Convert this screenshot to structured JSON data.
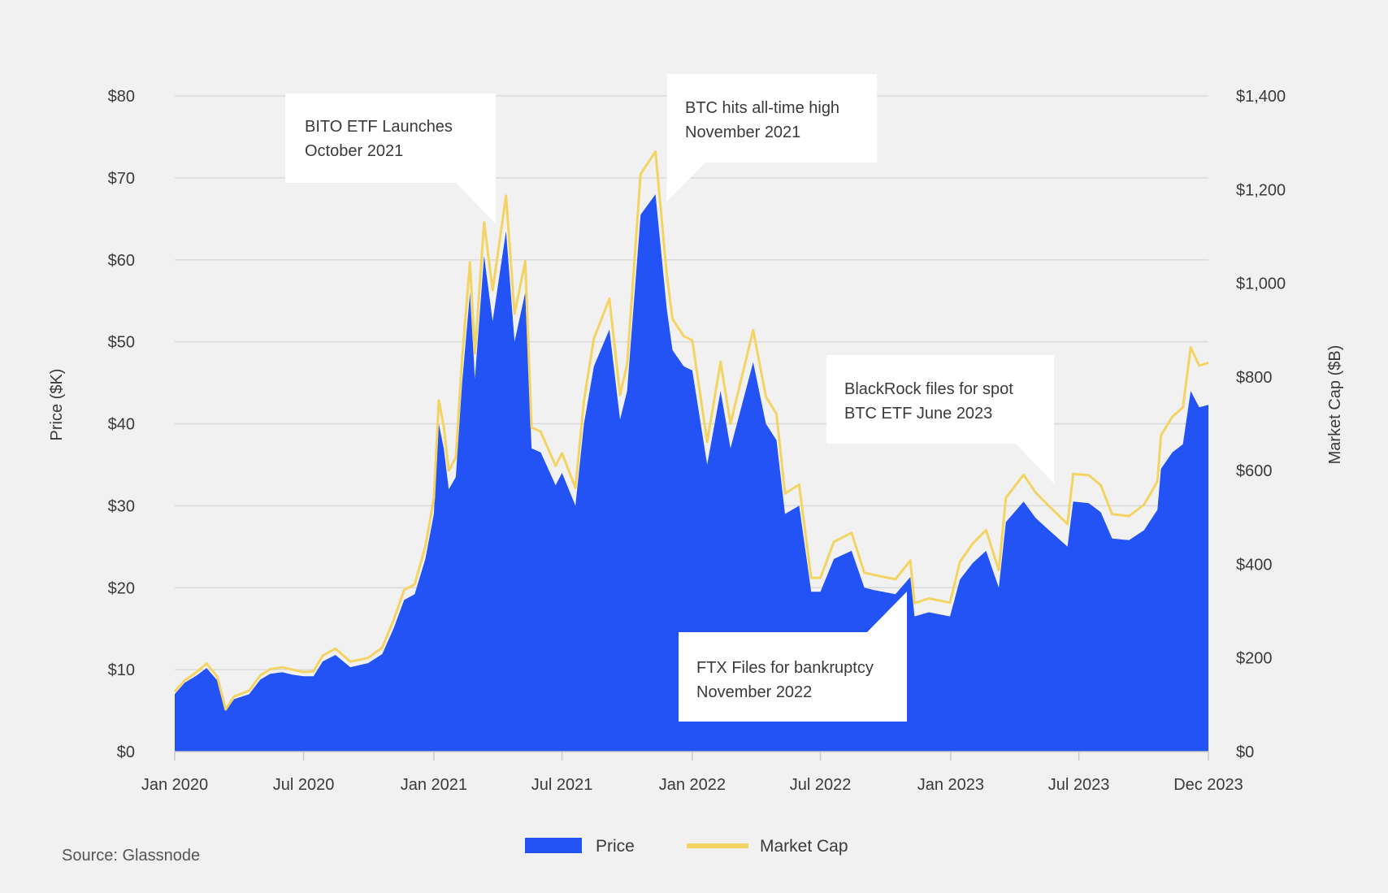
{
  "colors": {
    "background": "#f1f1f1",
    "price_fill": "#2352f5",
    "market_cap_line": "#f3d462",
    "grid": "#d9d9d9",
    "text": "#3a3a3a",
    "annotation_bg": "#ffffff"
  },
  "source": "Source: Glassnode",
  "chart_data": {
    "type": "area",
    "title": "",
    "xlabel": "",
    "ylabel_left": "Price ($K)",
    "ylabel_right": "Market Cap ($B)",
    "ylim_left": [
      0,
      80
    ],
    "ylim_right": [
      0,
      1400
    ],
    "grid": true,
    "legend_position": "bottom-center",
    "x_range": [
      "2020-01-01",
      "2023-12-31"
    ],
    "x_ticks": [
      {
        "date": "2020-01-01",
        "label": "Jan 2020"
      },
      {
        "date": "2020-07-01",
        "label": "Jul 2020"
      },
      {
        "date": "2021-01-01",
        "label": "Jan 2021"
      },
      {
        "date": "2021-07-01",
        "label": "Jul 2021"
      },
      {
        "date": "2022-01-01",
        "label": "Jan 2022"
      },
      {
        "date": "2022-07-01",
        "label": "Jul 2022"
      },
      {
        "date": "2023-01-01",
        "label": "Jan 2023"
      },
      {
        "date": "2023-07-01",
        "label": "Jul 2023"
      },
      {
        "date": "2023-12-31",
        "label": "Dec 2023"
      }
    ],
    "y_ticks_left": [
      {
        "value": 0,
        "label": "$0"
      },
      {
        "value": 10,
        "label": "$10"
      },
      {
        "value": 20,
        "label": "$20"
      },
      {
        "value": 30,
        "label": "$30"
      },
      {
        "value": 40,
        "label": "$40"
      },
      {
        "value": 50,
        "label": "$50"
      },
      {
        "value": 60,
        "label": "$60"
      },
      {
        "value": 70,
        "label": "$70"
      },
      {
        "value": 80,
        "label": "$80"
      }
    ],
    "y_ticks_right": [
      {
        "value": 0,
        "label": "$0"
      },
      {
        "value": 200,
        "label": "$200"
      },
      {
        "value": 400,
        "label": "$400"
      },
      {
        "value": 600,
        "label": "$600"
      },
      {
        "value": 800,
        "label": "$800"
      },
      {
        "value": 1000,
        "label": "$1,000"
      },
      {
        "value": 1200,
        "label": "$1,200"
      },
      {
        "value": 1400,
        "label": "$1,400"
      }
    ],
    "series": [
      {
        "name": "Price",
        "axis": "left",
        "style": "area",
        "points": [
          [
            "2020-01-01",
            7.0
          ],
          [
            "2020-01-15",
            8.4
          ],
          [
            "2020-02-01",
            9.3
          ],
          [
            "2020-02-15",
            10.2
          ],
          [
            "2020-03-01",
            8.7
          ],
          [
            "2020-03-13",
            5.0
          ],
          [
            "2020-03-25",
            6.4
          ],
          [
            "2020-04-15",
            7.0
          ],
          [
            "2020-05-01",
            8.8
          ],
          [
            "2020-05-15",
            9.5
          ],
          [
            "2020-06-01",
            9.7
          ],
          [
            "2020-06-15",
            9.4
          ],
          [
            "2020-07-01",
            9.2
          ],
          [
            "2020-07-15",
            9.2
          ],
          [
            "2020-07-28",
            11.0
          ],
          [
            "2020-08-15",
            11.8
          ],
          [
            "2020-09-05",
            10.3
          ],
          [
            "2020-09-30",
            10.8
          ],
          [
            "2020-10-20",
            11.9
          ],
          [
            "2020-11-05",
            15.0
          ],
          [
            "2020-11-20",
            18.5
          ],
          [
            "2020-12-05",
            19.2
          ],
          [
            "2020-12-20",
            23.5
          ],
          [
            "2021-01-01",
            29.0
          ],
          [
            "2021-01-08",
            40.0
          ],
          [
            "2021-01-15",
            37.0
          ],
          [
            "2021-01-22",
            32.0
          ],
          [
            "2021-02-01",
            33.5
          ],
          [
            "2021-02-10",
            45.0
          ],
          [
            "2021-02-21",
            56.0
          ],
          [
            "2021-02-28",
            45.5
          ],
          [
            "2021-03-13",
            60.5
          ],
          [
            "2021-03-25",
            52.5
          ],
          [
            "2021-04-13",
            63.5
          ],
          [
            "2021-04-25",
            50.0
          ],
          [
            "2021-05-10",
            56.0
          ],
          [
            "2021-05-19",
            37.0
          ],
          [
            "2021-06-01",
            36.5
          ],
          [
            "2021-06-22",
            32.5
          ],
          [
            "2021-07-01",
            34.0
          ],
          [
            "2021-07-20",
            30.0
          ],
          [
            "2021-08-01",
            40.0
          ],
          [
            "2021-08-15",
            47.0
          ],
          [
            "2021-09-06",
            51.5
          ],
          [
            "2021-09-21",
            40.5
          ],
          [
            "2021-10-01",
            44.0
          ],
          [
            "2021-10-20",
            65.5
          ],
          [
            "2021-11-10",
            68.0
          ],
          [
            "2021-11-26",
            54.0
          ],
          [
            "2021-12-04",
            49.0
          ],
          [
            "2021-12-20",
            47.0
          ],
          [
            "2022-01-01",
            46.5
          ],
          [
            "2022-01-22",
            35.0
          ],
          [
            "2022-02-10",
            44.0
          ],
          [
            "2022-02-24",
            37.0
          ],
          [
            "2022-03-28",
            47.5
          ],
          [
            "2022-04-15",
            40.0
          ],
          [
            "2022-04-30",
            38.0
          ],
          [
            "2022-05-12",
            29.0
          ],
          [
            "2022-06-01",
            30.0
          ],
          [
            "2022-06-18",
            19.5
          ],
          [
            "2022-07-01",
            19.5
          ],
          [
            "2022-07-20",
            23.5
          ],
          [
            "2022-08-14",
            24.5
          ],
          [
            "2022-09-01",
            20.0
          ],
          [
            "2022-09-15",
            19.7
          ],
          [
            "2022-10-15",
            19.2
          ],
          [
            "2022-11-05",
            21.3
          ],
          [
            "2022-11-11",
            16.5
          ],
          [
            "2022-12-01",
            17.0
          ],
          [
            "2022-12-31",
            16.5
          ],
          [
            "2023-01-14",
            21.0
          ],
          [
            "2023-02-01",
            23.0
          ],
          [
            "2023-02-20",
            24.5
          ],
          [
            "2023-03-10",
            20.0
          ],
          [
            "2023-03-20",
            28.0
          ],
          [
            "2023-04-14",
            30.5
          ],
          [
            "2023-05-01",
            28.5
          ],
          [
            "2023-05-20",
            27.0
          ],
          [
            "2023-06-15",
            25.0
          ],
          [
            "2023-06-23",
            30.5
          ],
          [
            "2023-07-15",
            30.3
          ],
          [
            "2023-08-01",
            29.2
          ],
          [
            "2023-08-17",
            26.0
          ],
          [
            "2023-09-10",
            25.8
          ],
          [
            "2023-10-01",
            27.0
          ],
          [
            "2023-10-20",
            29.5
          ],
          [
            "2023-10-25",
            34.5
          ],
          [
            "2023-11-10",
            36.5
          ],
          [
            "2023-11-25",
            37.5
          ],
          [
            "2023-12-06",
            44.0
          ],
          [
            "2023-12-18",
            42.0
          ],
          [
            "2023-12-31",
            42.3
          ]
        ]
      },
      {
        "name": "Market Cap",
        "axis": "right",
        "style": "line",
        "points": [
          [
            "2020-01-01",
            128
          ],
          [
            "2020-01-15",
            152
          ],
          [
            "2020-02-01",
            170
          ],
          [
            "2020-02-15",
            188
          ],
          [
            "2020-03-01",
            160
          ],
          [
            "2020-03-13",
            90
          ],
          [
            "2020-03-25",
            118
          ],
          [
            "2020-04-15",
            130
          ],
          [
            "2020-05-01",
            163
          ],
          [
            "2020-05-15",
            176
          ],
          [
            "2020-06-01",
            180
          ],
          [
            "2020-06-15",
            175
          ],
          [
            "2020-07-01",
            170
          ],
          [
            "2020-07-15",
            171
          ],
          [
            "2020-07-28",
            205
          ],
          [
            "2020-08-15",
            220
          ],
          [
            "2020-09-05",
            192
          ],
          [
            "2020-09-30",
            200
          ],
          [
            "2020-10-20",
            222
          ],
          [
            "2020-11-05",
            280
          ],
          [
            "2020-11-20",
            345
          ],
          [
            "2020-12-05",
            357
          ],
          [
            "2020-12-20",
            438
          ],
          [
            "2021-01-01",
            540
          ],
          [
            "2021-01-08",
            750
          ],
          [
            "2021-01-15",
            694
          ],
          [
            "2021-01-22",
            600
          ],
          [
            "2021-02-01",
            628
          ],
          [
            "2021-02-10",
            840
          ],
          [
            "2021-02-21",
            1045
          ],
          [
            "2021-02-28",
            850
          ],
          [
            "2021-03-13",
            1130
          ],
          [
            "2021-03-25",
            985
          ],
          [
            "2021-04-13",
            1187
          ],
          [
            "2021-04-25",
            935
          ],
          [
            "2021-05-10",
            1047
          ],
          [
            "2021-05-19",
            692
          ],
          [
            "2021-06-01",
            683
          ],
          [
            "2021-06-22",
            610
          ],
          [
            "2021-07-01",
            637
          ],
          [
            "2021-07-20",
            563
          ],
          [
            "2021-08-01",
            750
          ],
          [
            "2021-08-15",
            882
          ],
          [
            "2021-09-06",
            967
          ],
          [
            "2021-09-21",
            761
          ],
          [
            "2021-10-01",
            827
          ],
          [
            "2021-10-20",
            1233
          ],
          [
            "2021-11-10",
            1281
          ],
          [
            "2021-11-26",
            1018
          ],
          [
            "2021-12-04",
            924
          ],
          [
            "2021-12-20",
            887
          ],
          [
            "2022-01-01",
            878
          ],
          [
            "2022-01-22",
            661
          ],
          [
            "2022-02-10",
            832
          ],
          [
            "2022-02-24",
            700
          ],
          [
            "2022-03-28",
            900
          ],
          [
            "2022-04-15",
            758
          ],
          [
            "2022-04-30",
            721
          ],
          [
            "2022-05-12",
            551
          ],
          [
            "2022-06-01",
            570
          ],
          [
            "2022-06-18",
            371
          ],
          [
            "2022-07-01",
            371
          ],
          [
            "2022-07-20",
            448
          ],
          [
            "2022-08-14",
            467
          ],
          [
            "2022-09-01",
            382
          ],
          [
            "2022-09-15",
            377
          ],
          [
            "2022-10-15",
            368
          ],
          [
            "2022-11-05",
            408
          ],
          [
            "2022-11-11",
            317
          ],
          [
            "2022-12-01",
            327
          ],
          [
            "2022-12-31",
            318
          ],
          [
            "2023-01-14",
            405
          ],
          [
            "2023-02-01",
            444
          ],
          [
            "2023-02-20",
            473
          ],
          [
            "2023-03-10",
            387
          ],
          [
            "2023-03-20",
            542
          ],
          [
            "2023-04-14",
            591
          ],
          [
            "2023-05-01",
            553
          ],
          [
            "2023-05-20",
            524
          ],
          [
            "2023-06-15",
            486
          ],
          [
            "2023-06-23",
            593
          ],
          [
            "2023-07-15",
            590
          ],
          [
            "2023-08-01",
            569
          ],
          [
            "2023-08-17",
            507
          ],
          [
            "2023-09-10",
            503
          ],
          [
            "2023-10-01",
            527
          ],
          [
            "2023-10-20",
            577
          ],
          [
            "2023-10-25",
            675
          ],
          [
            "2023-11-10",
            715
          ],
          [
            "2023-11-25",
            735
          ],
          [
            "2023-12-06",
            863
          ],
          [
            "2023-12-18",
            824
          ],
          [
            "2023-12-31",
            830
          ]
        ]
      }
    ],
    "annotations": [
      {
        "lines": [
          "BITO ETF Launches",
          "October 2021"
        ]
      },
      {
        "lines": [
          "BTC hits all-time high",
          "November 2021"
        ]
      },
      {
        "lines": [
          "BlackRock files for spot",
          "BTC ETF June 2023"
        ]
      },
      {
        "lines": [
          "FTX Files for bankruptcy",
          "November 2022"
        ]
      }
    ]
  }
}
